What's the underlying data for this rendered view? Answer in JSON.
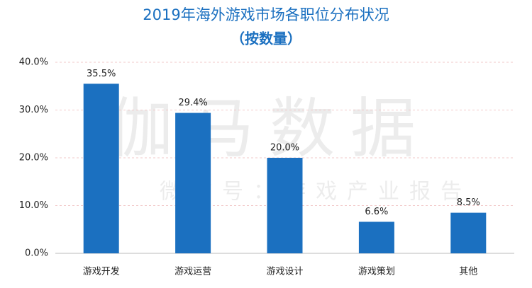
{
  "chart_data": {
    "type": "bar",
    "title": "2019年海外游戏市场各职位分布状况",
    "subtitle": "（按数量）",
    "annotations": [
      "伽马数据",
      "微信号：游戏产业报告"
    ],
    "categories": [
      "游戏开发",
      "游戏运营",
      "游戏设计",
      "游戏策划",
      "其他"
    ],
    "values": [
      35.5,
      29.4,
      20.0,
      6.6,
      8.5
    ],
    "value_labels": [
      "35.5%",
      "29.4%",
      "20.0%",
      "6.6%",
      "8.5%"
    ],
    "color": "#1b70c0",
    "ylim": [
      0,
      40
    ],
    "yticks": [
      {
        "value": 0,
        "label": "0.0%"
      },
      {
        "value": 10,
        "label": "10.0%"
      },
      {
        "value": 20,
        "label": "20.0%"
      },
      {
        "value": 30,
        "label": "30.0%"
      },
      {
        "value": 40,
        "label": "40.0%"
      }
    ],
    "grid": true
  }
}
